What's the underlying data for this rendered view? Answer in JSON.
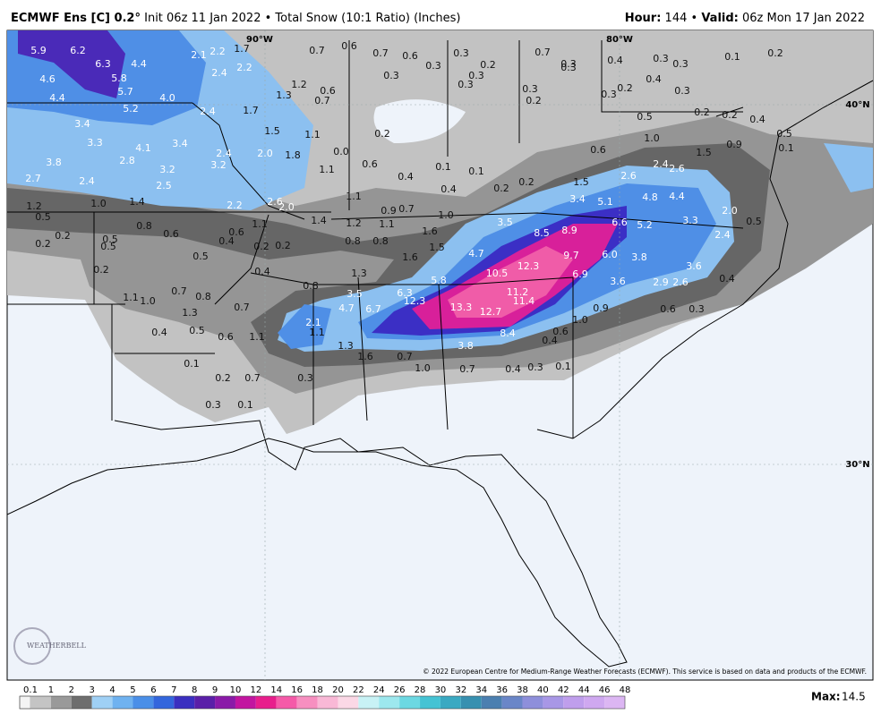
{
  "header": {
    "model": "ECMWF Ens [C] 0.2°",
    "init": "Init 06z 11 Jan 2022",
    "separator": "•",
    "product": "Total Snow (10:1 Ratio) (Inches)",
    "hour_label": "Hour:",
    "hour": "144",
    "valid_label": "Valid:",
    "valid": "06z Mon 17 Jan 2022"
  },
  "map": {
    "grid_labels": [
      "90°W",
      "80°W",
      "40°N",
      "30°N"
    ],
    "values": [
      "5.9",
      "6.2",
      "6.3",
      "4.4",
      "2.1",
      "2.2",
      "1.7",
      "0.7",
      "0.6",
      "0.7",
      "0.6",
      "0.3",
      "0.7",
      "0.3",
      "0.4",
      "0.3",
      "0.3",
      "0.1",
      "0.2",
      "4.6",
      "5.8",
      "2.4",
      "2.2",
      "0.3",
      "0.3",
      "0.2",
      "0.3",
      "0.3",
      "0.3",
      "0.4",
      "0.3",
      "0.2",
      "0.3",
      "4.4",
      "5.7",
      "4.0",
      "1.3",
      "1.2",
      "0.6",
      "0.7",
      "0.3",
      "0.2",
      "5.2",
      "2.4",
      "1.7",
      "0.5",
      "0.2",
      "0.2",
      "0.4",
      "3.4",
      "1.5",
      "1.1",
      "0.2",
      "1.0",
      "0.5",
      "3.3",
      "4.1",
      "3.4",
      "2.0",
      "1.8",
      "0.0",
      "0.6",
      "1.5",
      "0.9",
      "0.1",
      "3.8",
      "2.8",
      "3.2",
      "3.2",
      "2.4",
      "1.1",
      "0.6",
      "0.1",
      "0.1",
      "2.4",
      "2.6",
      "2.7",
      "2.4",
      "2.5",
      "0.4",
      "0.2",
      "1.5",
      "2.6",
      "0.4",
      "0.2",
      "1.1",
      "3.4",
      "5.1",
      "4.8",
      "4.4",
      "1.2",
      "1.0",
      "1.4",
      "2.2",
      "2.6",
      "2.0",
      "0.9",
      "0.7",
      "1.0",
      "2.0",
      "0.5",
      "1.1",
      "1.4",
      "1.2",
      "1.1",
      "3.5",
      "6.6",
      "5.2",
      "3.3",
      "0.5",
      "0.2",
      "0.2",
      "0.8",
      "0.6",
      "0.5",
      "0.5",
      "0.6",
      "0.4",
      "0.2",
      "0.2",
      "0.8",
      "0.8",
      "1.6",
      "8.5",
      "8.9",
      "2.4",
      "0.5",
      "1.5",
      "1.6",
      "4.7",
      "9.7",
      "6.0",
      "3.8",
      "0.2",
      "0.4",
      "1.3",
      "10.5",
      "12.3",
      "6.9",
      "3.6",
      "0.8",
      "5.8",
      "3.6",
      "2.9",
      "2.6",
      "0.4",
      "1.1",
      "1.0",
      "0.7",
      "0.8",
      "3.5",
      "6.3",
      "12.3",
      "11.2",
      "11.4",
      "1.3",
      "0.7",
      "4.7",
      "6.7",
      "13.3",
      "12.7",
      "1.0",
      "0.9",
      "0.6",
      "0.3",
      "2.1",
      "1.1",
      "0.4",
      "0.5",
      "0.6",
      "1.1",
      "8.4",
      "0.6",
      "1.3",
      "3.8",
      "0.4",
      "0.1",
      "1.6",
      "0.7",
      "1.0",
      "0.7",
      "0.4",
      "0.3",
      "0.1",
      "0.2",
      "0.7",
      "0.3",
      "0.3",
      "0.1"
    ],
    "logo": "WEATHERBELL",
    "copyright": "© 2022 European Centre for Medium-Range Weather Forecasts (ECMWF). This service is based on data and products of the ECMWF."
  },
  "legend": {
    "ticks": [
      "0.1",
      "1",
      "2",
      "3",
      "4",
      "5",
      "6",
      "7",
      "8",
      "9",
      "10",
      "12",
      "14",
      "16",
      "18",
      "20",
      "22",
      "24",
      "26",
      "28",
      "30",
      "32",
      "34",
      "36",
      "38",
      "40",
      "42",
      "44",
      "46",
      "48"
    ],
    "colors": [
      "#c4c4c4",
      "#999999",
      "#6e6e6e",
      "#9fd0f5",
      "#6fb2f0",
      "#4a8fe8",
      "#3366dd",
      "#3a2fc0",
      "#5a1fa8",
      "#8a1aa8",
      "#c215a0",
      "#e81e8c",
      "#f55aa8",
      "#f78fc0",
      "#f9b8d6",
      "#fbd8e6",
      "#c8f2f5",
      "#9de8ee",
      "#6cd8e2",
      "#45c3d4",
      "#3aa9c2",
      "#3790b0",
      "#4b7fb0",
      "#6a86c8",
      "#8e8fdb",
      "#a897e6",
      "#bf9eec",
      "#cfa8f0",
      "#dcb6f3"
    ],
    "max_label": "Max:",
    "max": "14.5"
  }
}
